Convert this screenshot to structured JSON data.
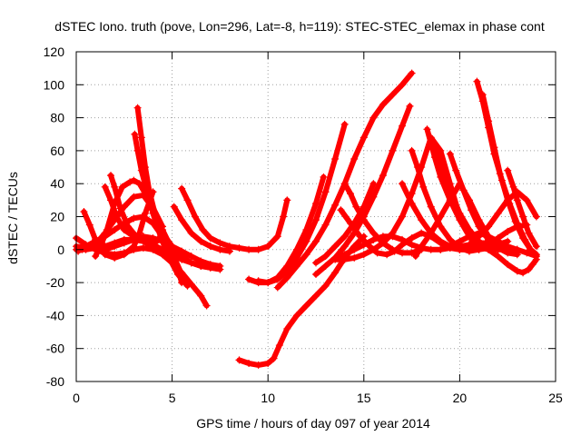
{
  "chart_data": {
    "type": "scatter",
    "title": "dSTEC Iono. truth (pove, Lon=296, Lat=-8, h=119): STEC-STEC_elemax in phase cont",
    "xlabel": "GPS time / hours of day 097 of year 2014",
    "ylabel": "dSTEC  / TECUs",
    "xlim": [
      0,
      25
    ],
    "ylim": [
      -80,
      120
    ],
    "xticks": [
      0,
      5,
      10,
      15,
      20,
      25
    ],
    "yticks": [
      -80,
      -60,
      -40,
      -20,
      0,
      20,
      40,
      60,
      80,
      100,
      120
    ],
    "grid": true,
    "marker": "plus",
    "series_color": "#ff0000",
    "series": [
      {
        "x": [
          0.0,
          0.5,
          1.0,
          1.5,
          2.0,
          2.5,
          3.0,
          3.5,
          4.0,
          4.5,
          5.0,
          5.5,
          6.0,
          6.5,
          7.0,
          7.5
        ],
        "y": [
          0,
          0,
          1,
          2,
          4,
          6,
          6,
          5,
          3,
          0,
          -3,
          -6,
          -8,
          -10,
          -11,
          -12
        ]
      },
      {
        "x": [
          0.0,
          0.5,
          1.0,
          1.5,
          2.0,
          2.5,
          3.0,
          3.5,
          4.0,
          4.5,
          5.0,
          5.5,
          6.0,
          6.5,
          6.8
        ],
        "y": [
          7,
          3,
          0,
          -2,
          -3,
          -2,
          0,
          1,
          0,
          -3,
          -8,
          -14,
          -21,
          -28,
          -34
        ]
      },
      {
        "x": [
          0.0,
          0.5,
          1.0,
          1.5,
          2.0,
          2.5,
          3.0,
          3.5,
          4.0,
          4.5,
          5.0,
          5.5,
          6.0,
          6.5,
          7.0,
          7.5
        ],
        "y": [
          2,
          1,
          1,
          0,
          2,
          4,
          6,
          8,
          7,
          5,
          2,
          -1,
          -4,
          -7,
          -9,
          -10
        ]
      },
      {
        "x": [
          0.1,
          0.5,
          1.0,
          1.5,
          2.0,
          2.5,
          3.0,
          3.5,
          4.0,
          4.5,
          5.0,
          5.5
        ],
        "y": [
          -1,
          2,
          5,
          8,
          12,
          16,
          19,
          20,
          16,
          8,
          -2,
          -15
        ]
      },
      {
        "x": [
          0.3,
          0.6,
          1.0,
          1.5,
          2.0,
          2.5,
          3.0,
          3.5,
          4.0,
          4.5,
          5.0,
          5.5
        ],
        "y": [
          0,
          1,
          3,
          10,
          18,
          26,
          32,
          33,
          25,
          12,
          0,
          -20
        ]
      },
      {
        "x": [
          0.4,
          0.7,
          1.0,
          1.5,
          2.0,
          2.5,
          3.0,
          3.3,
          3.6,
          4.0
        ],
        "y": [
          23,
          15,
          6,
          -3,
          -5,
          -3,
          2,
          10,
          22,
          35
        ]
      },
      {
        "x": [
          1.0,
          1.3,
          1.6,
          2.0,
          2.4,
          2.8,
          3.0,
          3.3,
          3.8,
          4.5
        ],
        "y": [
          -4,
          3,
          12,
          28,
          38,
          41,
          42,
          40,
          30,
          14
        ]
      },
      {
        "x": [
          1.5,
          1.8,
          2.1,
          2.5,
          3.0,
          3.6,
          4.2
        ],
        "y": [
          38,
          30,
          20,
          12,
          8,
          6,
          5
        ]
      },
      {
        "x": [
          1.8,
          2.0,
          2.3,
          2.7,
          3.2,
          3.8,
          4.5
        ],
        "y": [
          45,
          38,
          25,
          14,
          7,
          3,
          0
        ]
      },
      {
        "x": [
          3.05,
          3.2,
          3.4,
          3.7,
          4.0,
          4.4,
          4.8,
          5.3,
          5.8
        ],
        "y": [
          70,
          60,
          48,
          35,
          22,
          8,
          -4,
          -15,
          -22
        ]
      },
      {
        "x": [
          3.2,
          3.4,
          3.6,
          3.8,
          4.1,
          4.5,
          5.0,
          5.5,
          6.0,
          6.5,
          7.0,
          7.3
        ],
        "y": [
          86,
          68,
          50,
          36,
          22,
          10,
          2,
          -4,
          -8,
          -10,
          -11,
          -11
        ]
      },
      {
        "x": [
          5.1,
          5.5,
          6.0,
          6.5,
          7.0,
          7.5,
          8.0
        ],
        "y": [
          26,
          18,
          10,
          5,
          2,
          0,
          -1
        ]
      },
      {
        "x": [
          5.5,
          5.8,
          6.2,
          6.6,
          7.0,
          7.5,
          8.0,
          8.5,
          9.0,
          9.5,
          10.0,
          10.5,
          10.8,
          11.0
        ],
        "y": [
          37,
          30,
          20,
          12,
          7,
          4,
          2,
          1,
          0,
          0,
          2,
          8,
          20,
          30
        ]
      },
      {
        "x": [
          8.5,
          9.0,
          9.5,
          10.0,
          10.3,
          10.6,
          11.0,
          11.5,
          12.0,
          12.5,
          13.0,
          13.5,
          14.0,
          14.5,
          15.0
        ],
        "y": [
          -67,
          -69,
          -70,
          -69,
          -66,
          -58,
          -48,
          -40,
          -34,
          -28,
          -22,
          -14,
          -5,
          2,
          8
        ]
      },
      {
        "x": [
          9.0,
          9.5,
          10.0,
          10.5,
          11.0,
          11.5,
          12.0,
          12.5,
          12.9
        ],
        "y": [
          -18,
          -20,
          -20,
          -17,
          -10,
          0,
          12,
          28,
          44
        ]
      },
      {
        "x": [
          9.5,
          10.0,
          10.5,
          11.0,
          11.5,
          12.0,
          12.5,
          13.0,
          13.5,
          14.0
        ],
        "y": [
          -19,
          -20,
          -18,
          -13,
          -5,
          5,
          18,
          35,
          55,
          76
        ]
      },
      {
        "x": [
          10.5,
          11.0,
          11.5,
          12.0,
          12.5,
          13.0,
          13.5,
          14.0,
          14.5,
          15.0,
          15.5,
          16.0,
          16.5,
          17.0,
          17.5
        ],
        "y": [
          -23,
          -17,
          -10,
          -3,
          5,
          15,
          27,
          40,
          55,
          68,
          80,
          88,
          94,
          100,
          107
        ]
      },
      {
        "x": [
          12.5,
          13.0,
          13.5,
          14.0,
          14.5,
          15.0,
          15.5,
          16.0,
          16.5,
          17.0,
          17.4
        ],
        "y": [
          -15,
          -10,
          -5,
          2,
          10,
          20,
          32,
          45,
          60,
          75,
          87
        ]
      },
      {
        "x": [
          12.5,
          13.0,
          13.5,
          14.0,
          14.5,
          15.0,
          15.5
        ],
        "y": [
          -8,
          -4,
          2,
          8,
          16,
          26,
          40
        ]
      },
      {
        "x": [
          13.5,
          14.0,
          14.5,
          15.0,
          15.5,
          16.0,
          16.5,
          17.0,
          17.5,
          18.0,
          18.5,
          19.0,
          19.5,
          20.0,
          20.5,
          21.0,
          21.5,
          22.0,
          22.5,
          23.0
        ],
        "y": [
          -5,
          -3,
          0,
          3,
          6,
          8,
          8,
          6,
          3,
          1,
          0,
          0,
          1,
          2,
          3,
          4,
          4,
          3,
          1,
          -2
        ]
      },
      {
        "x": [
          13.5,
          14.0,
          14.5,
          15.0,
          15.5,
          16.0,
          16.5,
          17.0,
          17.5,
          18.0,
          18.5,
          19.0,
          19.5,
          20.0,
          20.5,
          21.0
        ],
        "y": [
          -6,
          -6,
          -5,
          -3,
          0,
          4,
          10,
          20,
          34,
          50,
          68,
          60,
          40,
          20,
          8,
          0
        ]
      },
      {
        "x": [
          13.8,
          14.3,
          14.8,
          15.3,
          15.7,
          16.2,
          16.6,
          17.0,
          17.5,
          18.0,
          18.5,
          19.0,
          19.5,
          20.0,
          20.5,
          21.0,
          21.5,
          22.0,
          22.5,
          23.0,
          23.5
        ],
        "y": [
          24,
          16,
          8,
          2,
          -2,
          -3,
          -1,
          3,
          7,
          10,
          8,
          4,
          1,
          0,
          0,
          1,
          3,
          7,
          11,
          14,
          15
        ]
      },
      {
        "x": [
          14.0,
          14.3,
          14.6,
          15.0,
          15.5,
          16.0,
          16.5,
          17.0,
          17.5,
          18.0
        ],
        "y": [
          40,
          34,
          26,
          18,
          10,
          4,
          0,
          -2,
          -2,
          0
        ]
      },
      {
        "x": [
          17.0,
          17.5,
          18.0,
          18.5,
          19.0,
          19.5,
          20.0,
          20.5,
          21.0,
          21.5,
          22.0,
          22.5
        ],
        "y": [
          40,
          28,
          18,
          10,
          5,
          2,
          0,
          0,
          0,
          1,
          3,
          5
        ]
      },
      {
        "x": [
          17.5,
          17.8,
          18.1,
          18.5,
          19.0,
          19.5,
          20.0,
          20.5,
          21.0
        ],
        "y": [
          60,
          50,
          38,
          26,
          14,
          6,
          1,
          -1,
          0
        ]
      },
      {
        "x": [
          17.7,
          18.0,
          18.5,
          19.0,
          19.5,
          20.0,
          20.5,
          21.0,
          21.5,
          22.0,
          22.5,
          23.0
        ],
        "y": [
          -4,
          2,
          10,
          20,
          30,
          40,
          30,
          18,
          8,
          2,
          0,
          0
        ]
      },
      {
        "x": [
          18.3,
          18.7,
          19.0,
          19.5,
          20.0,
          20.5,
          21.0,
          21.5
        ],
        "y": [
          73,
          56,
          44,
          30,
          18,
          8,
          2,
          0
        ]
      },
      {
        "x": [
          18.7,
          19.0,
          19.5,
          20.0,
          20.5,
          21.0,
          21.5,
          22.0,
          22.5,
          23.0
        ],
        "y": [
          64,
          52,
          36,
          22,
          12,
          5,
          1,
          0,
          0,
          0
        ]
      },
      {
        "x": [
          19.0,
          19.5,
          20.0,
          20.5,
          21.0,
          21.5,
          22.0,
          22.5,
          23.0,
          23.5,
          24.0
        ],
        "y": [
          0,
          2,
          5,
          8,
          10,
          8,
          5,
          2,
          0,
          -2,
          -4
        ]
      },
      {
        "x": [
          19.5,
          19.8,
          20.2,
          20.6,
          21.0,
          21.5,
          22.0,
          22.5,
          23.0
        ],
        "y": [
          58,
          48,
          36,
          24,
          14,
          6,
          1,
          -2,
          -3
        ]
      },
      {
        "x": [
          20.0,
          20.5,
          21.0,
          21.5,
          22.0,
          22.5,
          23.0,
          23.5,
          24.0
        ],
        "y": [
          0,
          3,
          8,
          14,
          22,
          30,
          35,
          30,
          20
        ]
      },
      {
        "x": [
          20.9,
          21.2,
          21.5,
          21.8,
          22.2,
          22.6,
          23.0,
          23.4,
          23.7,
          24.0
        ],
        "y": [
          102,
          90,
          74,
          58,
          42,
          28,
          16,
          6,
          0,
          -4
        ]
      },
      {
        "x": [
          21.2,
          21.5,
          21.8,
          22.1,
          22.5,
          22.9,
          23.3,
          23.7,
          24.0
        ],
        "y": [
          94,
          78,
          62,
          46,
          30,
          17,
          7,
          0,
          -3
        ]
      },
      {
        "x": [
          21.0,
          21.5,
          22.0,
          22.5,
          23.0,
          23.3,
          23.6,
          23.8,
          24.0
        ],
        "y": [
          2,
          0,
          -4,
          -9,
          -13,
          -14,
          -12,
          -9,
          -6
        ]
      },
      {
        "x": [
          22.5,
          22.8,
          23.0,
          23.3,
          23.6,
          24.0
        ],
        "y": [
          48,
          38,
          30,
          20,
          10,
          2
        ]
      }
    ]
  }
}
